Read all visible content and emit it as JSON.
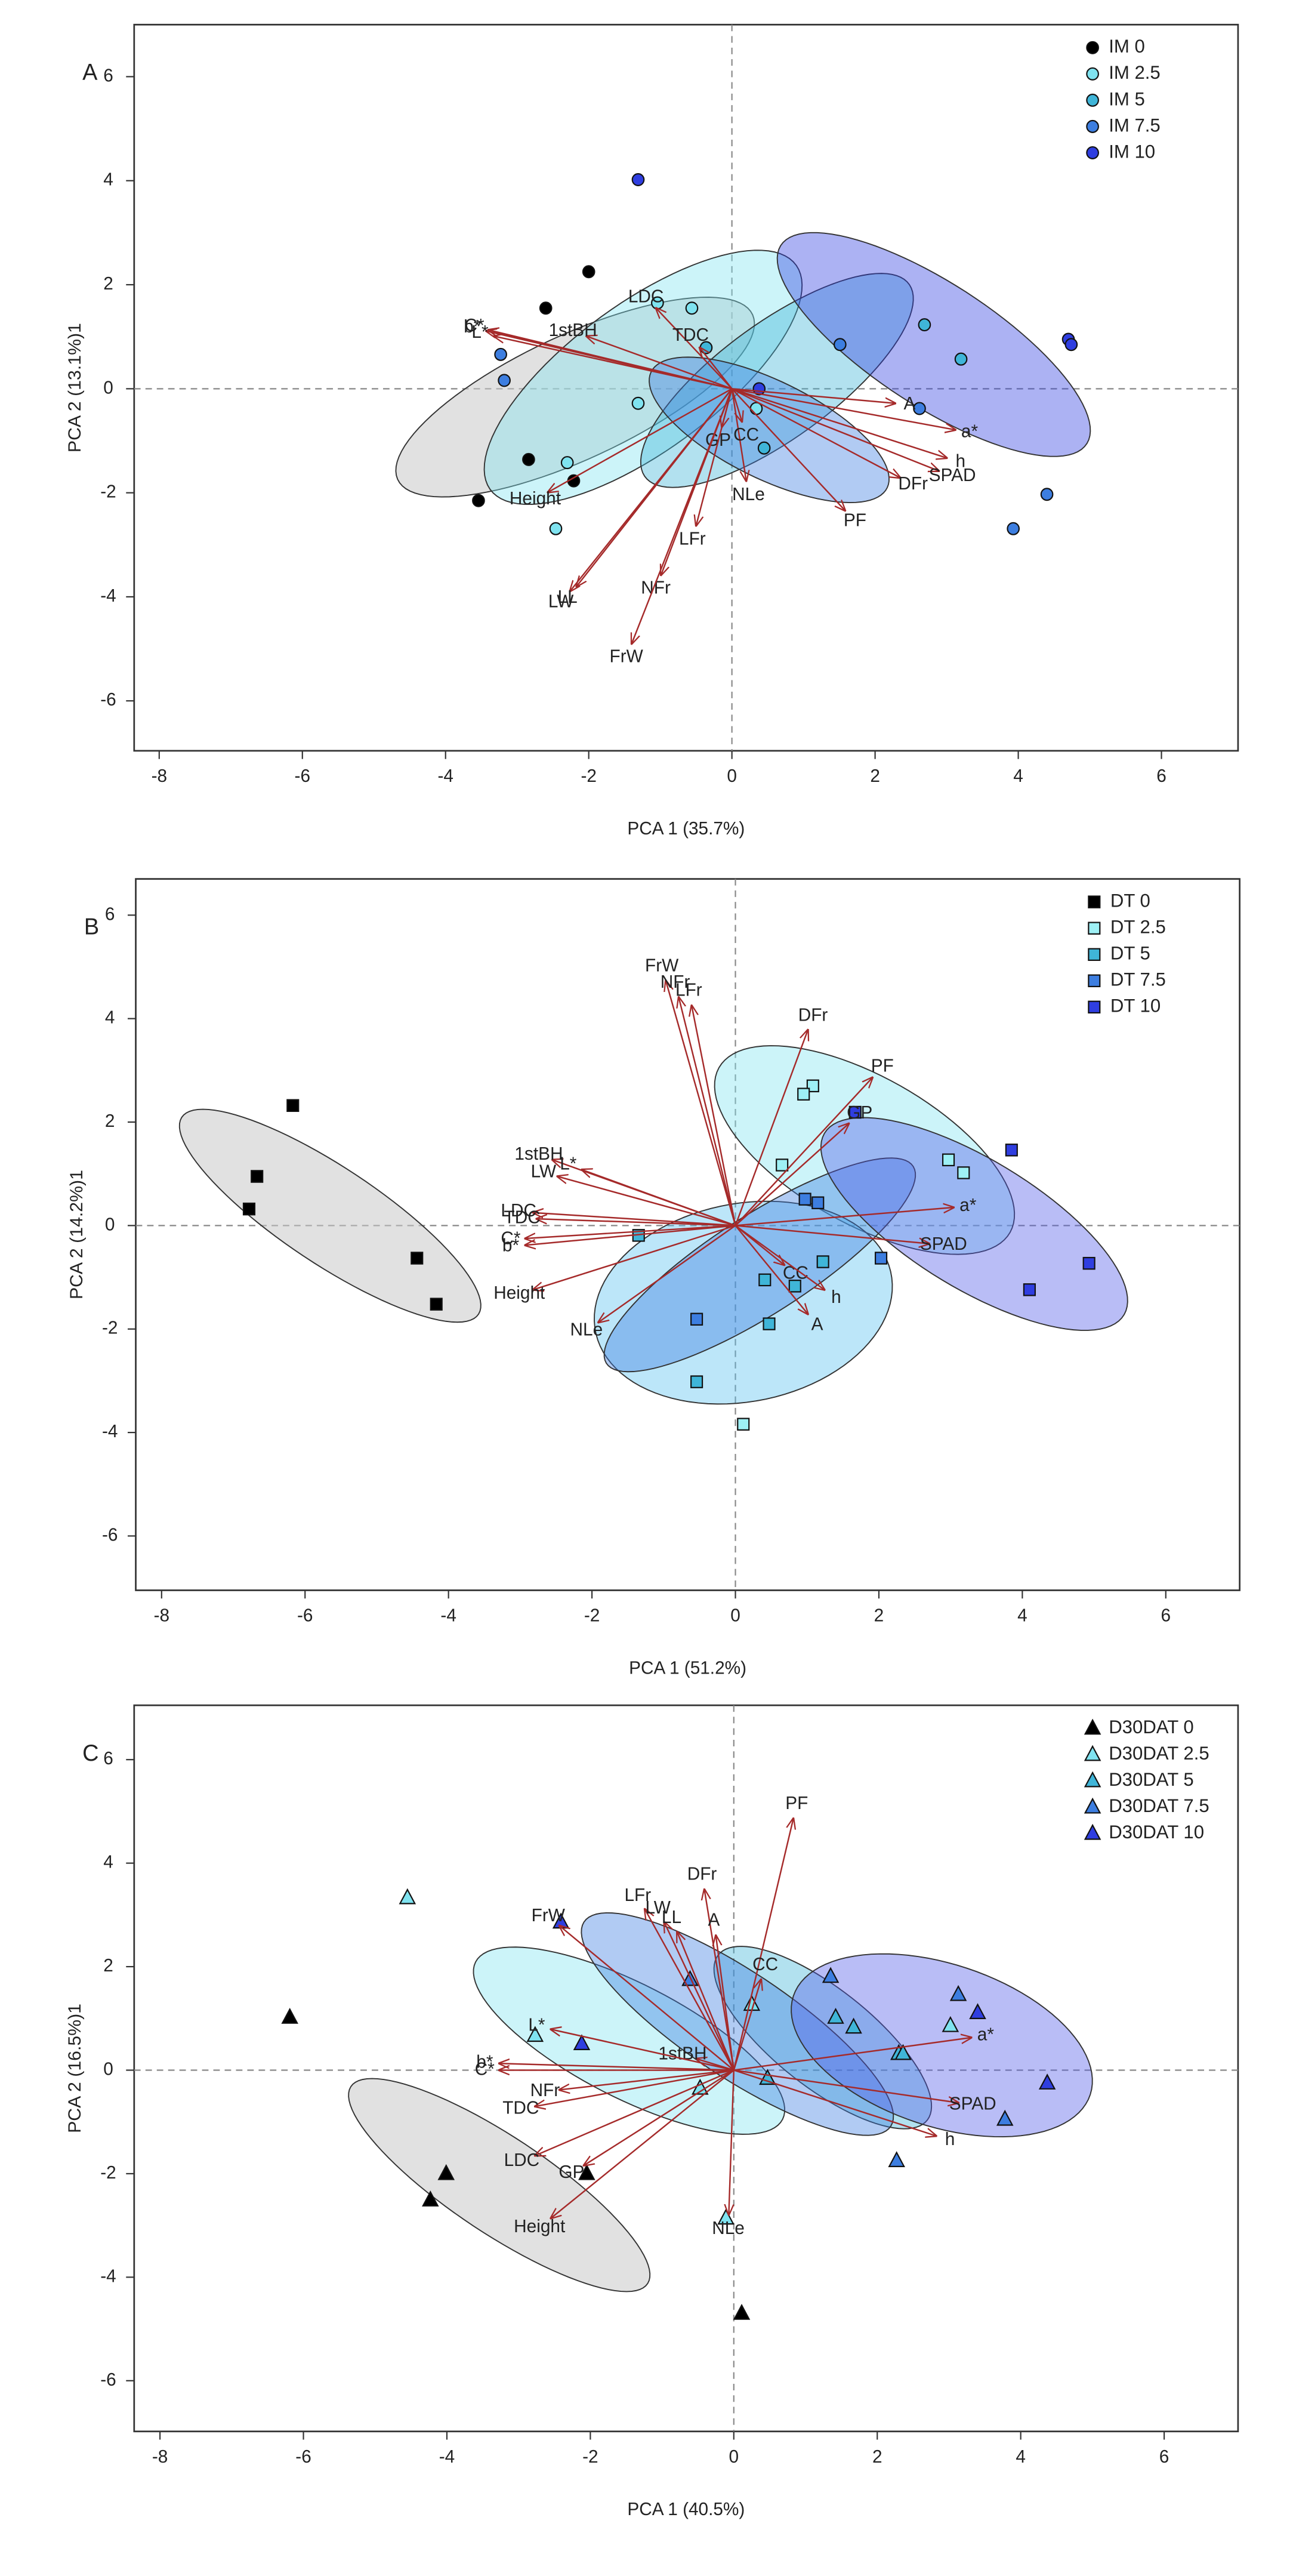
{
  "chart_data": [
    {
      "type": "biplot",
      "panel_label": "A",
      "xlabel": "PCA 1 (35.7%)",
      "ylabel": "PCA 2 (13.1%)1",
      "xlim": [
        -8.35,
        7.07
      ],
      "ylim": [
        -6.96,
        7.0
      ],
      "xticks": [
        -8,
        -6,
        -4,
        -2,
        0,
        2,
        4,
        6
      ],
      "yticks": [
        -6,
        -4,
        -2,
        0,
        2,
        4,
        6
      ],
      "legend": "topright",
      "marker": "circle",
      "series": [
        {
          "name": "IM 0",
          "color": "#000000",
          "ellipse_color": "#c8c8c8",
          "x": [
            -2.0,
            -2.6,
            -2.84,
            -2.21,
            -3.54
          ],
          "y": [
            2.25,
            1.55,
            -1.36,
            -1.77,
            -2.15
          ],
          "ellipse": {
            "center": [
              -2.19,
              -0.16
            ],
            "u": [
              2.48,
              1.58
            ],
            "v": [
              0.35,
              -1.09
            ]
          }
        },
        {
          "name": "IM 2.5",
          "color": "#7fe3f0",
          "ellipse_color": "#7fe3f0",
          "x": [
            -1.04,
            -0.56,
            -1.31,
            0.34,
            -2.3,
            -2.46
          ],
          "y": [
            1.65,
            1.55,
            -0.28,
            -0.38,
            -1.42,
            -2.69
          ],
          "ellipse": {
            "center": [
              -1.24,
              0.22
            ],
            "u": [
              2.14,
              2.15
            ],
            "v": [
              0.59,
              -1.16
            ]
          }
        },
        {
          "name": "IM 5",
          "color": "#3fb5d8",
          "ellipse_color": "#3fb5d8",
          "x": [
            -0.36,
            2.69,
            3.2,
            0.45
          ],
          "y": [
            0.79,
            1.23,
            0.57,
            -1.14
          ],
          "ellipse": {
            "center": [
              0.63,
              0.16
            ],
            "u": [
              1.85,
              1.84
            ],
            "v": [
              0.45,
              -0.92
            ]
          }
        },
        {
          "name": "IM 7.5",
          "color": "#3d7ee0",
          "ellipse_color": "#3d7ee0",
          "x": [
            -3.23,
            -3.18,
            1.51,
            2.62,
            3.93,
            4.4
          ],
          "y": [
            0.66,
            0.16,
            0.85,
            -0.38,
            -2.69,
            -2.03
          ],
          "ellipse": {
            "center": [
              0.52,
              -0.79
            ],
            "u": [
              1.65,
              -1.11
            ],
            "v": [
              -0.29,
              -0.85
            ]
          }
        },
        {
          "name": "IM 10",
          "color": "#2f3ee0",
          "ellipse_color": "#2f3ee0",
          "x": [
            -1.31,
            0.38,
            4.7,
            4.74
          ],
          "y": [
            4.02,
            0.0,
            0.95,
            0.85
          ],
          "ellipse": {
            "center": [
              2.82,
              0.85
            ],
            "u": [
              2.14,
              -1.9
            ],
            "v": [
              -0.45,
              -1.01
            ]
          }
        }
      ],
      "loadings": [
        {
          "name": "b*",
          "x": -3.43,
          "y": 1.11
        },
        {
          "name": "C*",
          "x": -3.4,
          "y": 1.13
        },
        {
          "name": "L*",
          "x": -3.32,
          "y": 1.01
        },
        {
          "name": "1stBH",
          "x": -2.03,
          "y": 1.01
        },
        {
          "name": "LDC",
          "x": -1.06,
          "y": 1.55
        },
        {
          "name": "TDC",
          "x": -0.45,
          "y": 0.79
        },
        {
          "name": "A",
          "x": 2.28,
          "y": -0.28
        },
        {
          "name": "a*",
          "x": 3.12,
          "y": -0.79
        },
        {
          "name": "h",
          "x": 3.0,
          "y": -1.33
        },
        {
          "name": "SPAD",
          "x": 2.89,
          "y": -1.58
        },
        {
          "name": "DFr",
          "x": 2.35,
          "y": -1.71
        },
        {
          "name": "PF",
          "x": 1.58,
          "y": -2.34
        },
        {
          "name": "NLe",
          "x": 0.2,
          "y": -1.77
        },
        {
          "name": "CC",
          "x": 0.14,
          "y": -0.63
        },
        {
          "name": "GP",
          "x": -0.14,
          "y": -0.73
        },
        {
          "name": "LFr",
          "x": -0.5,
          "y": -2.63
        },
        {
          "name": "NFr",
          "x": -0.99,
          "y": -3.58
        },
        {
          "name": "FrW",
          "x": -1.4,
          "y": -4.9
        },
        {
          "name": "LW",
          "x": -2.26,
          "y": -3.89
        },
        {
          "name": "LL",
          "x": -2.17,
          "y": -3.8
        },
        {
          "name": "Height",
          "x": -2.57,
          "y": -1.99
        }
      ]
    },
    {
      "type": "biplot",
      "panel_label": "B",
      "xlabel": "PCA 1 (51.2%)",
      "ylabel": "PCA 2 (14.2%)1",
      "xlim": [
        -8.36,
        7.03
      ],
      "ylim": [
        -7.05,
        6.7
      ],
      "xticks": [
        -8,
        -6,
        -4,
        -2,
        0,
        2,
        4,
        6
      ],
      "yticks": [
        -6,
        -4,
        -2,
        0,
        2,
        4,
        6
      ],
      "legend": "topright",
      "marker": "square",
      "series": [
        {
          "name": "DT 0",
          "color": "#000000",
          "ellipse_color": "#c8c8c8",
          "x": [
            -6.17,
            -6.67,
            -6.78,
            -4.44,
            -4.17
          ],
          "y": [
            2.32,
            0.95,
            0.32,
            -0.63,
            -1.52
          ],
          "ellipse": {
            "center": [
              -5.65,
              0.19
            ],
            "u": [
              2.07,
              -1.9
            ],
            "v": [
              -0.36,
              -0.79
            ]
          }
        },
        {
          "name": "DT 2.5",
          "color": "#9ef0f5",
          "ellipse_color": "#7fe3f0",
          "x": [
            1.08,
            0.95,
            0.65,
            2.97,
            3.18,
            0.11
          ],
          "y": [
            2.7,
            2.54,
            1.17,
            1.27,
            1.02,
            -3.84
          ],
          "ellipse": {
            "center": [
              1.8,
              1.46
            ],
            "u": [
              2.03,
              -1.59
            ],
            "v": [
              -0.5,
              -1.24
            ]
          }
        },
        {
          "name": "DT 5",
          "color": "#3fb5d8",
          "ellipse_color": "#58c0f0",
          "x": [
            -1.35,
            0.41,
            0.47,
            1.22,
            0.83,
            -0.54
          ],
          "y": [
            -0.19,
            -1.05,
            -1.9,
            -0.7,
            -1.17,
            -3.02
          ],
          "ellipse": {
            "center": [
              0.11,
              -1.49
            ],
            "u": [
              2.07,
              0.48
            ],
            "v": [
              0.18,
              -1.9
            ]
          }
        },
        {
          "name": "DT 7.5",
          "color": "#3d7ee0",
          "ellipse_color": "#3d7ee0",
          "x": [
            0.97,
            1.15,
            -0.54,
            2.03
          ],
          "y": [
            0.51,
            0.44,
            -1.81,
            -0.63
          ],
          "ellipse": {
            "center": [
              0.34,
              -0.76
            ],
            "u": [
              2.14,
              1.9
            ],
            "v": [
              0.36,
              -0.81
            ]
          }
        },
        {
          "name": "DT 10",
          "color": "#2f3ee0",
          "ellipse_color": "#4f5ae8",
          "x": [
            1.67,
            3.85,
            4.1,
            4.93
          ],
          "y": [
            2.19,
            1.46,
            -1.24,
            -0.73
          ],
          "ellipse": {
            "center": [
              3.33,
              0.03
            ],
            "u": [
              2.09,
              -1.75
            ],
            "v": [
              -0.45,
              -1.08
            ]
          }
        }
      ],
      "loadings": [
        {
          "name": "FrW",
          "x": -0.97,
          "y": 4.73
        },
        {
          "name": "NFr",
          "x": -0.79,
          "y": 4.41
        },
        {
          "name": "LFr",
          "x": -0.61,
          "y": 4.25
        },
        {
          "name": "DFr",
          "x": 1.01,
          "y": 3.78
        },
        {
          "name": "PF",
          "x": 1.91,
          "y": 2.86
        },
        {
          "name": "GP",
          "x": 1.58,
          "y": 1.97
        },
        {
          "name": "a*",
          "x": 3.04,
          "y": 0.35
        },
        {
          "name": "SPAD",
          "x": 2.7,
          "y": -0.35
        },
        {
          "name": "CC",
          "x": 0.68,
          "y": -0.76
        },
        {
          "name": "h",
          "x": 1.24,
          "y": -1.24
        },
        {
          "name": "A",
          "x": 1.01,
          "y": -1.71
        },
        {
          "name": "NLe",
          "x": -1.91,
          "y": -1.87
        },
        {
          "name": "Height",
          "x": -2.82,
          "y": -1.24
        },
        {
          "name": "b*",
          "x": -2.93,
          "y": -0.38
        },
        {
          "name": "C*",
          "x": -2.93,
          "y": -0.25
        },
        {
          "name": "LDC",
          "x": -2.82,
          "y": 0.25
        },
        {
          "name": "TDC",
          "x": -2.77,
          "y": 0.13
        },
        {
          "name": "1stBH",
          "x": -2.55,
          "y": 1.27
        },
        {
          "name": "LW",
          "x": -2.48,
          "y": 0.95
        },
        {
          "name": "L*",
          "x": -2.14,
          "y": 1.08
        }
      ]
    },
    {
      "type": "biplot",
      "panel_label": "C",
      "xlabel": "PCA 1 (40.5%)",
      "ylabel": "PCA 2 (16.5%)1",
      "xlim": [
        -8.36,
        7.03
      ],
      "ylim": [
        -6.98,
        7.05
      ],
      "xticks": [
        -8,
        -6,
        -4,
        -2,
        0,
        2,
        4,
        6
      ],
      "yticks": [
        -6,
        -4,
        -2,
        0,
        2,
        4,
        6
      ],
      "legend": "topright",
      "marker": "triangle",
      "series": [
        {
          "name": "D30DAT 0",
          "color": "#000000",
          "ellipse_color": "#c8c8c8",
          "x": [
            -6.19,
            -4.01,
            -4.23,
            -2.05,
            0.11
          ],
          "y": [
            1.02,
            -2.0,
            -2.51,
            -2.0,
            -4.7
          ],
          "ellipse": {
            "center": [
              -3.27,
              -2.22
            ],
            "u": [
              2.07,
              -1.9
            ],
            "v": [
              -0.36,
              -0.79
            ]
          }
        },
        {
          "name": "D30DAT 2.5",
          "color": "#7fe3f0",
          "ellipse_color": "#7fe3f0",
          "x": [
            -4.55,
            -2.77,
            -0.47,
            -0.11,
            0.25,
            3.02
          ],
          "y": [
            3.33,
            0.67,
            -0.35,
            -2.86,
            1.27,
            0.86
          ],
          "ellipse": {
            "center": [
              -1.46,
              0.57
            ],
            "u": [
              2.14,
              -1.52
            ],
            "v": [
              -0.36,
              -0.98
            ]
          }
        },
        {
          "name": "D30DAT 5",
          "color": "#3fb5d8",
          "ellipse_color": "#3fb5d8",
          "x": [
            0.47,
            1.42,
            1.67,
            2.3,
            2.36
          ],
          "y": [
            -0.16,
            1.02,
            0.83,
            0.32,
            0.32
          ],
          "ellipse": {
            "center": [
              1.24,
              0.63
            ],
            "u": [
              1.46,
              -1.59
            ],
            "v": [
              -0.41,
              -0.76
            ]
          }
        },
        {
          "name": "D30DAT 7.5",
          "color": "#3d7ee0",
          "ellipse_color": "#3d7ee0",
          "x": [
            -0.61,
            1.35,
            3.13,
            3.78,
            2.27
          ],
          "y": [
            1.75,
            1.81,
            1.46,
            -0.95,
            -1.75
          ],
          "ellipse": {
            "center": [
              0.05,
              0.89
            ],
            "u": [
              2.14,
              -1.97
            ],
            "v": [
              -0.39,
              -0.86
            ]
          }
        },
        {
          "name": "D30DAT 10",
          "color": "#2f3ee0",
          "ellipse_color": "#4f5ae8",
          "x": [
            -2.41,
            -2.12,
            3.4,
            4.37
          ],
          "y": [
            2.86,
            0.51,
            1.11,
            -0.25
          ],
          "ellipse": {
            "center": [
              2.9,
              0.48
            ],
            "u": [
              2.07,
              -0.95
            ],
            "v": [
              -0.35,
              -1.49
            ]
          }
        }
      ],
      "loadings": [
        {
          "name": "PF",
          "x": 0.83,
          "y": 4.86
        },
        {
          "name": "DFr",
          "x": -0.41,
          "y": 3.49
        },
        {
          "name": "LFr",
          "x": -1.24,
          "y": 3.11
        },
        {
          "name": "LW",
          "x": -0.97,
          "y": 2.86
        },
        {
          "name": "LL",
          "x": -0.79,
          "y": 2.67
        },
        {
          "name": "A",
          "x": -0.25,
          "y": 2.6
        },
        {
          "name": "FrW",
          "x": -2.43,
          "y": 2.79
        },
        {
          "name": "CC",
          "x": 0.38,
          "y": 1.75
        },
        {
          "name": "a*",
          "x": 3.31,
          "y": 0.63
        },
        {
          "name": "SPAD",
          "x": 3.13,
          "y": -0.63
        },
        {
          "name": "h",
          "x": 2.82,
          "y": -1.27
        },
        {
          "name": "1stBH",
          "x": -0.52,
          "y": 0.22
        },
        {
          "name": "L*",
          "x": -2.55,
          "y": 0.79
        },
        {
          "name": "b*",
          "x": -3.27,
          "y": 0.13
        },
        {
          "name": "C*",
          "x": -3.27,
          "y": 0.0
        },
        {
          "name": "NFr",
          "x": -2.43,
          "y": -0.38
        },
        {
          "name": "TDC",
          "x": -2.77,
          "y": -0.7
        },
        {
          "name": "LDC",
          "x": -2.77,
          "y": -1.65
        },
        {
          "name": "GP",
          "x": -2.09,
          "y": -1.84
        },
        {
          "name": "Height",
          "x": -2.55,
          "y": -2.86
        },
        {
          "name": "NLe",
          "x": -0.07,
          "y": -2.79
        }
      ]
    }
  ]
}
